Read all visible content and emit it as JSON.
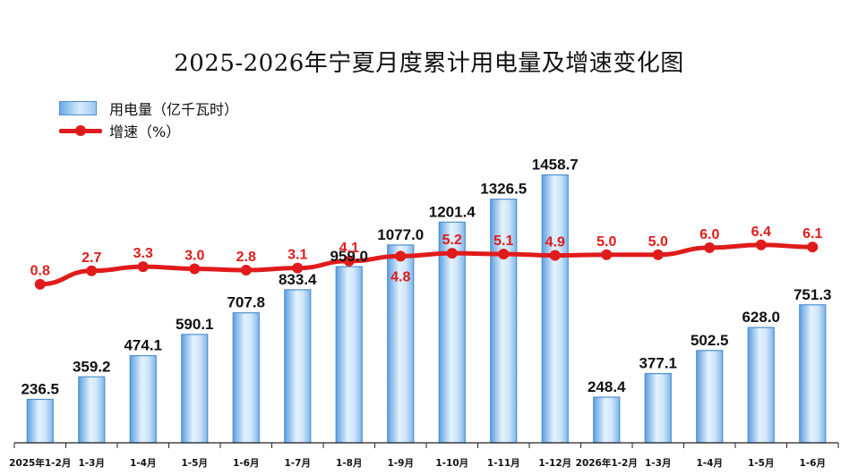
{
  "chart_data": {
    "type": "bar",
    "title": "2025-2026年宁夏月度累计用电量及增速变化图",
    "categories": [
      "2025年1-2月",
      "1-3月",
      "1-4月",
      "1-5月",
      "1-6月",
      "1-7月",
      "1-8月",
      "1-9月",
      "1-10月",
      "1-11月",
      "1-12月",
      "2026年1-2月",
      "1-3月",
      "1-4月",
      "1-5月",
      "1-6月"
    ],
    "series": [
      {
        "name": "用电量（亿千瓦时）",
        "type": "bar",
        "values": [
          236.5,
          359.2,
          474.1,
          590.1,
          707.8,
          833.4,
          959.0,
          1077.0,
          1201.4,
          1326.5,
          1458.7,
          248.4,
          377.1,
          502.5,
          628.0,
          751.3
        ],
        "labels": [
          "236.5",
          "359.2",
          "474.1",
          "590.1",
          "707.8",
          "833.4",
          "959.0",
          "1077.0",
          "1201.4",
          "1326.5",
          "1458.7",
          "248.4",
          "377.1",
          "502.5",
          "628.0",
          "751.3"
        ]
      },
      {
        "name": "增速（%）",
        "type": "line",
        "values": [
          0.8,
          2.7,
          3.3,
          3.0,
          2.8,
          3.1,
          4.1,
          4.8,
          5.2,
          5.1,
          4.9,
          5.0,
          5.0,
          6.0,
          6.4,
          6.1
        ],
        "labels": [
          "0.8",
          "2.7",
          "3.3",
          "3.0",
          "2.8",
          "3.1",
          "4.1",
          "4.8",
          "5.2",
          "5.1",
          "4.9",
          "5.0",
          "5.0",
          "6.0",
          "6.4",
          "6.1"
        ]
      }
    ],
    "legend": "top-left",
    "grid": false,
    "colors": {
      "bar": "#9cc9f0",
      "bar_edge": "#4f8fd0",
      "line": "#e01b1b"
    }
  }
}
